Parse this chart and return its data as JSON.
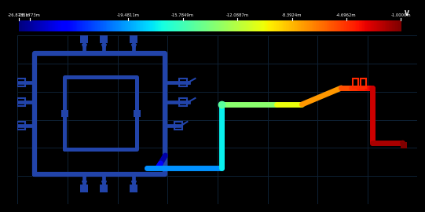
{
  "background_color": "#000000",
  "grid_color": "#0d1f2d",
  "colorbar_ticks": [
    "-26.8735m",
    "-26.1773m",
    "-19.4811m",
    "-15.7849m",
    "-12.0887m",
    "-8.3924m",
    "-4.6962m",
    "-1.0000m"
  ],
  "colorbar_label": "V",
  "colorbar_values": [
    -0.0268735,
    -0.0261773,
    -0.0194811,
    -0.0157849,
    -0.0120887,
    -0.0083924,
    -0.0046962,
    -0.001
  ],
  "vmin": -0.0268735,
  "vmax": -0.001,
  "chip_blue": "#1a3a8a",
  "lw_chip": 4.5,
  "lw_trace": 4.0
}
